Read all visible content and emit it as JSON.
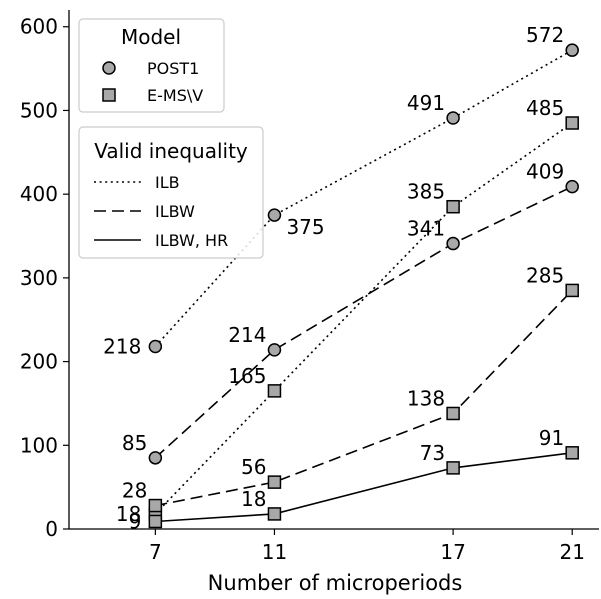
{
  "chart_data": {
    "type": "line",
    "title": "",
    "xlabel": "Number of microperiods",
    "ylabel": "",
    "x": [
      7,
      11,
      17,
      21
    ],
    "xticks": [
      "7",
      "11",
      "17",
      "21"
    ],
    "xlim": [
      4.1,
      21.9
    ],
    "ylim": [
      0,
      620
    ],
    "yticks": [
      "0",
      "100",
      "200",
      "300",
      "400",
      "500",
      "600"
    ],
    "grid": false,
    "legends": {
      "model": {
        "title": "Model",
        "entries": [
          {
            "label": "POST1",
            "marker": "circle"
          },
          {
            "label": "E-MS\\V",
            "marker": "square"
          }
        ]
      },
      "inequality": {
        "title": "Valid inequality",
        "entries": [
          {
            "label": "ILB",
            "dash": "dotted"
          },
          {
            "label": "ILBW",
            "dash": "dashed"
          },
          {
            "label": "ILBW, HR",
            "dash": "solid"
          }
        ]
      }
    },
    "series": [
      {
        "model": "POST1",
        "inequality": "ILB",
        "marker": "circle",
        "dash": "dotted",
        "values": [
          218,
          375,
          491,
          572
        ]
      },
      {
        "model": "POST1",
        "inequality": "ILBW",
        "marker": "circle",
        "dash": "dashed",
        "values": [
          85,
          214,
          341,
          409
        ]
      },
      {
        "model": "E-MS\\V",
        "inequality": "ILB",
        "marker": "square",
        "dash": "dotted",
        "values": [
          18,
          165,
          385,
          485
        ]
      },
      {
        "model": "E-MS\\V",
        "inequality": "ILBW",
        "marker": "square",
        "dash": "dashed",
        "values": [
          28,
          56,
          138,
          285
        ]
      },
      {
        "model": "E-MS\\V",
        "inequality": "ILBW, HR",
        "marker": "square",
        "dash": "solid",
        "values": [
          9,
          18,
          73,
          91
        ]
      }
    ],
    "data_labels": [
      {
        "series": 0,
        "point": 0,
        "text": "218",
        "pos": "left"
      },
      {
        "series": 0,
        "point": 1,
        "text": "375",
        "pos": "below-right"
      },
      {
        "series": 0,
        "point": 2,
        "text": "491",
        "pos": "above-left"
      },
      {
        "series": 0,
        "point": 3,
        "text": "572",
        "pos": "above-left"
      },
      {
        "series": 1,
        "point": 0,
        "text": "85",
        "pos": "above-left"
      },
      {
        "series": 1,
        "point": 1,
        "text": "214",
        "pos": "above-left"
      },
      {
        "series": 1,
        "point": 2,
        "text": "341",
        "pos": "above-left"
      },
      {
        "series": 1,
        "point": 3,
        "text": "409",
        "pos": "above-left"
      },
      {
        "series": 2,
        "point": 0,
        "text": "18",
        "pos": "left"
      },
      {
        "series": 2,
        "point": 1,
        "text": "165",
        "pos": "above-left"
      },
      {
        "series": 2,
        "point": 2,
        "text": "385",
        "pos": "above-left"
      },
      {
        "series": 2,
        "point": 3,
        "text": "485",
        "pos": "above-left"
      },
      {
        "series": 3,
        "point": 0,
        "text": "28",
        "pos": "above-left"
      },
      {
        "series": 3,
        "point": 1,
        "text": "56",
        "pos": "above-left"
      },
      {
        "series": 3,
        "point": 2,
        "text": "138",
        "pos": "above-left"
      },
      {
        "series": 3,
        "point": 3,
        "text": "285",
        "pos": "above-left"
      },
      {
        "series": 4,
        "point": 0,
        "text": "9",
        "pos": "left"
      },
      {
        "series": 4,
        "point": 1,
        "text": "18",
        "pos": "above-left"
      },
      {
        "series": 4,
        "point": 2,
        "text": "73",
        "pos": "above-left"
      },
      {
        "series": 4,
        "point": 3,
        "text": "91",
        "pos": "above-left"
      }
    ],
    "colors": {
      "marker_fill": "#a8a8a8",
      "line": "#000000",
      "legend_border": "#cccccc"
    }
  }
}
